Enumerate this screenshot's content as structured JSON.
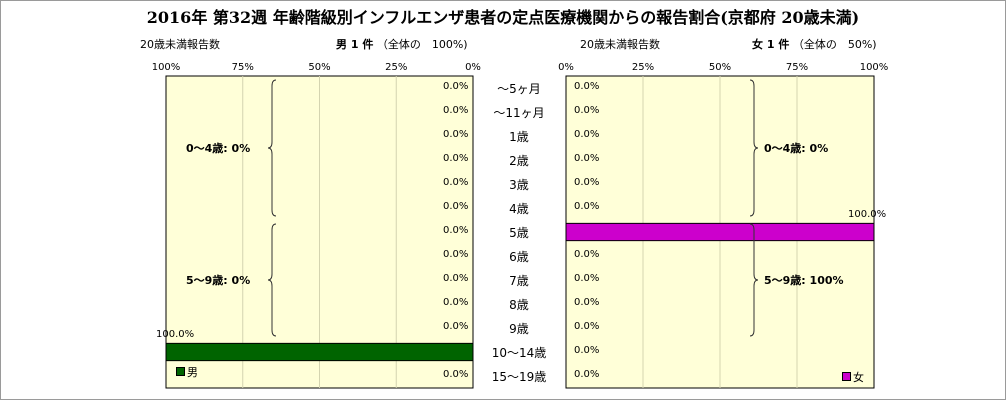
{
  "title": "2016年 第32週 年齢階級別インフルエンザ患者の定点医療機関からの報告割合(京都府 20歳未満)",
  "colors": {
    "plot_bg": "#ffffd8",
    "grid": "#d4d4b0",
    "male": "#006400",
    "female": "#cc00cc",
    "border": "#000000"
  },
  "chart_data": {
    "type": "bar",
    "orientation": "horizontal",
    "categories": [
      "～5ヶ月",
      "～11ヶ月",
      "1歳",
      "2歳",
      "3歳",
      "4歳",
      "5歳",
      "6歳",
      "7歳",
      "8歳",
      "9歳",
      "10～14歳",
      "15～19歳"
    ],
    "male": {
      "header_left": "20歳未満報告数",
      "header_title": "男 1 件",
      "header_share": "（全体の　100%)",
      "ticks": [
        "100%",
        "75%",
        "50%",
        "25%",
        "0%"
      ],
      "axis_range": [
        100,
        0
      ],
      "legend": "男",
      "values": [
        0,
        0,
        0,
        0,
        0,
        0,
        0,
        0,
        0,
        0,
        0,
        100,
        0
      ],
      "labels": [
        "0.0%",
        "0.0%",
        "0.0%",
        "0.0%",
        "0.0%",
        "0.0%",
        "0.0%",
        "0.0%",
        "0.0%",
        "0.0%",
        "0.0%",
        "100.0%",
        "0.0%"
      ],
      "groups": [
        {
          "label": "0～4歳: 0%",
          "from": 0,
          "to": 5
        },
        {
          "label": "5～9歳: 0%",
          "from": 6,
          "to": 10
        }
      ]
    },
    "female": {
      "header_left": "20歳未満報告数",
      "header_title": "女 1 件",
      "header_share": "（全体の　50%)",
      "ticks": [
        "0%",
        "25%",
        "50%",
        "75%",
        "100%"
      ],
      "axis_range": [
        0,
        100
      ],
      "legend": "女",
      "values": [
        0,
        0,
        0,
        0,
        0,
        0,
        100,
        0,
        0,
        0,
        0,
        0,
        0
      ],
      "labels": [
        "0.0%",
        "0.0%",
        "0.0%",
        "0.0%",
        "0.0%",
        "0.0%",
        "100.0%",
        "0.0%",
        "0.0%",
        "0.0%",
        "0.0%",
        "0.0%",
        "0.0%"
      ],
      "groups": [
        {
          "label": "0～4歳: 0%",
          "from": 0,
          "to": 5
        },
        {
          "label": "5～9歳: 100%",
          "from": 6,
          "to": 10
        }
      ]
    }
  }
}
